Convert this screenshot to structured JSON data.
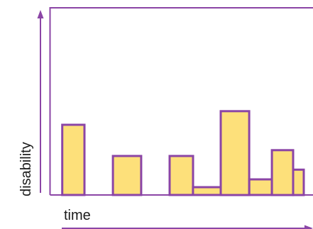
{
  "chart_data": {
    "type": "bar",
    "title": "",
    "xlabel": "time",
    "ylabel": "disability",
    "ylim": [
      0,
      1
    ],
    "xlim": [
      0,
      1
    ],
    "grid": false,
    "colors": {
      "bar_fill": "#fde07a",
      "bar_stroke": "#8b45a6",
      "frame": "#8b45a6",
      "arrow": "#8b45a6"
    },
    "bars": [
      {
        "x0": 0.049,
        "x1": 0.141,
        "value": 0.36
      },
      {
        "x0": 0.259,
        "x1": 0.376,
        "value": 0.2
      },
      {
        "x0": 0.494,
        "x1": 0.591,
        "value": 0.2
      },
      {
        "x0": 0.591,
        "x1": 0.706,
        "value": 0.04
      },
      {
        "x0": 0.706,
        "x1": 0.824,
        "value": 0.43
      },
      {
        "x0": 0.824,
        "x1": 0.918,
        "value": 0.08
      },
      {
        "x0": 0.918,
        "x1": 1.006,
        "value": 0.23
      },
      {
        "x0": 1.006,
        "x1": 1.05,
        "value": 0.13
      }
    ]
  }
}
